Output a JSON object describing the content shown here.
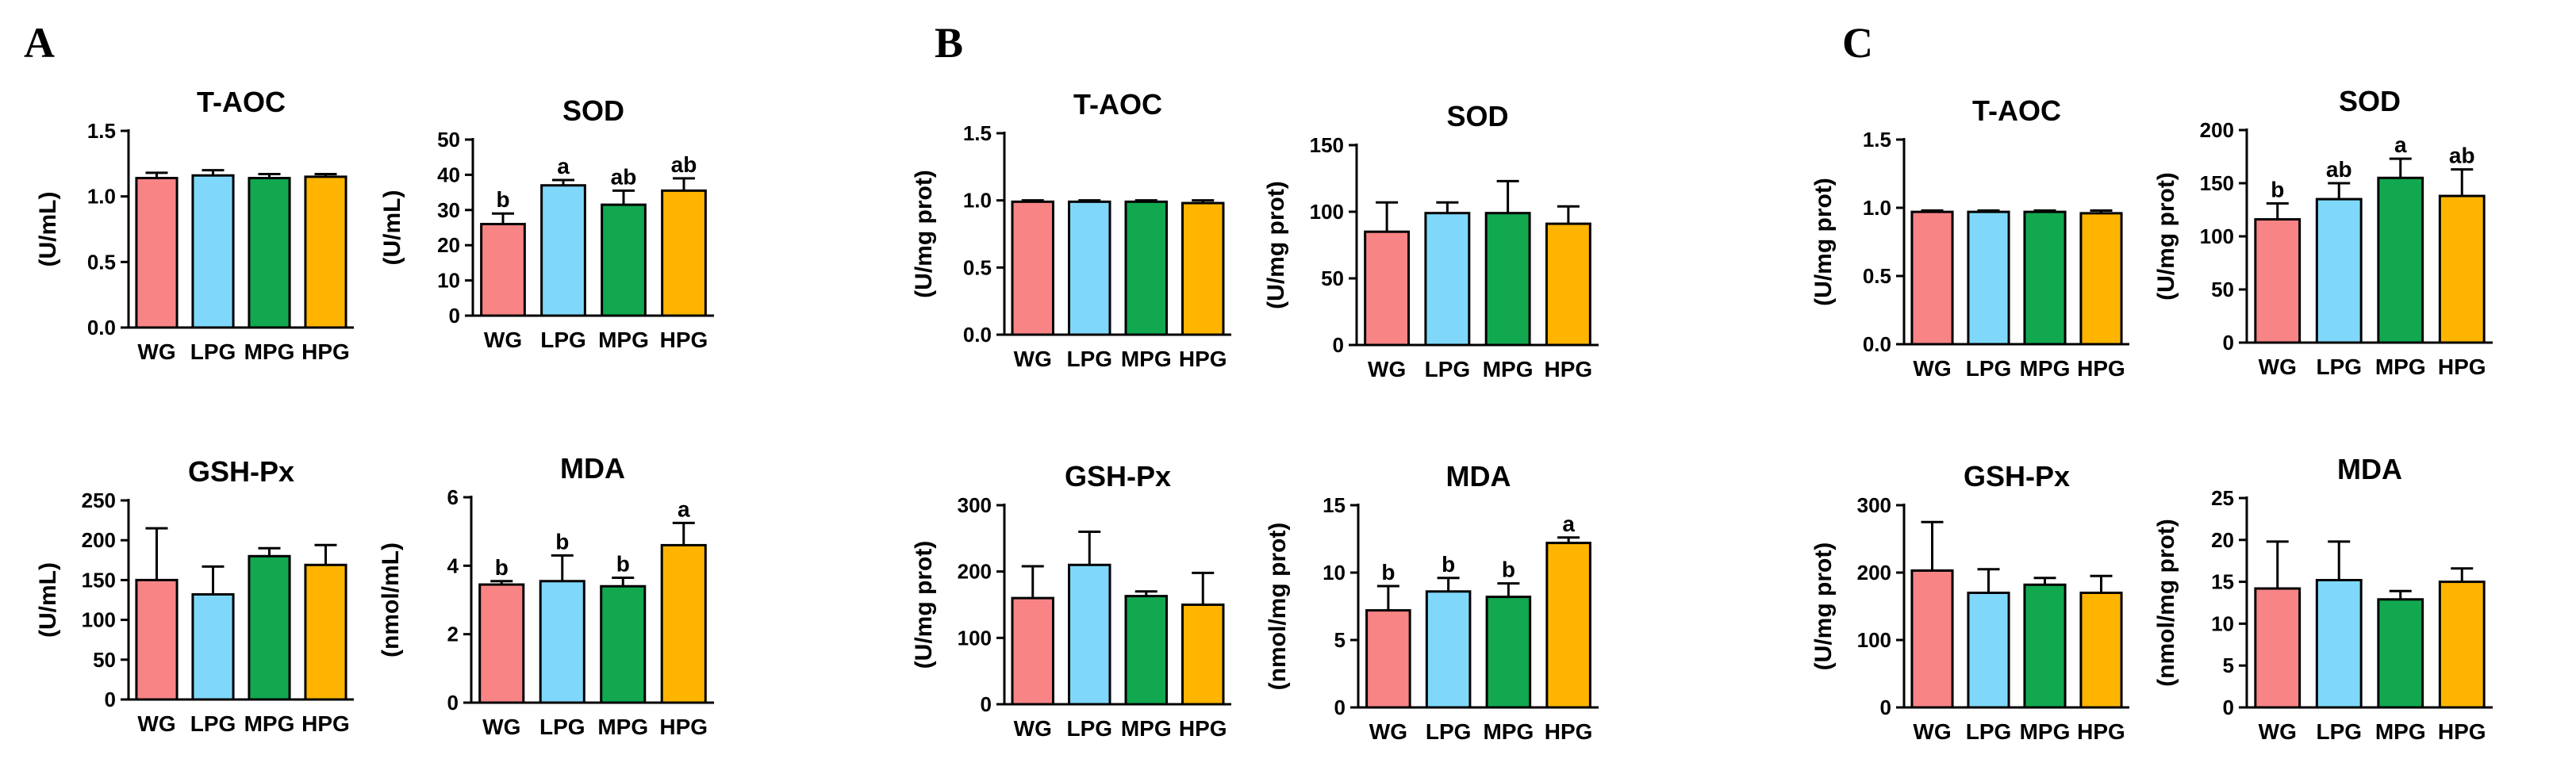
{
  "colors": {
    "WG": "#F88486",
    "LPG": "#7FD8FA",
    "MPG": "#11A84F",
    "HPG": "#FFB500",
    "stroke": "#000000"
  },
  "panels": [
    {
      "label": "A"
    },
    {
      "label": "B"
    },
    {
      "label": "C"
    }
  ],
  "chart_data": [
    {
      "type": "bar",
      "panel": "A",
      "title": "T-AOC",
      "ylabel": "(U/mL)",
      "categories": [
        "WG",
        "LPG",
        "MPG",
        "HPG"
      ],
      "values": [
        1.14,
        1.16,
        1.14,
        1.15
      ],
      "errors": [
        0.04,
        0.04,
        0.03,
        0.02
      ],
      "ylim": [
        0,
        1.5
      ],
      "yticks": [
        "0.0",
        "0.5",
        "1.0",
        "1.5"
      ],
      "tick_values": [
        0,
        0.5,
        1.0,
        1.5
      ],
      "letters": [
        "",
        "",
        "",
        ""
      ]
    },
    {
      "type": "bar",
      "panel": "A",
      "title": "SOD",
      "ylabel": "(U/mL)",
      "categories": [
        "WG",
        "LPG",
        "MPG",
        "HPG"
      ],
      "values": [
        26,
        37,
        31.5,
        35.5
      ],
      "errors": [
        3,
        1.5,
        4,
        3.5
      ],
      "ylim": [
        0,
        50
      ],
      "yticks": [
        "0",
        "10",
        "20",
        "30",
        "40",
        "50"
      ],
      "tick_values": [
        0,
        10,
        20,
        30,
        40,
        50
      ],
      "letters": [
        "b",
        "a",
        "ab",
        "ab"
      ]
    },
    {
      "type": "bar",
      "panel": "A",
      "title": "GSH-Px",
      "ylabel": "(U/mL)",
      "categories": [
        "WG",
        "LPG",
        "MPG",
        "HPG"
      ],
      "values": [
        150,
        132,
        180,
        169
      ],
      "errors": [
        65,
        35,
        10,
        25
      ],
      "ylim": [
        0,
        250
      ],
      "yticks": [
        "0",
        "50",
        "100",
        "150",
        "200",
        "250"
      ],
      "tick_values": [
        0,
        50,
        100,
        150,
        200,
        250
      ],
      "letters": [
        "",
        "",
        "",
        ""
      ]
    },
    {
      "type": "bar",
      "panel": "A",
      "title": "MDA",
      "ylabel": "(nmol/mL)",
      "categories": [
        "WG",
        "LPG",
        "MPG",
        "HPG"
      ],
      "values": [
        3.45,
        3.55,
        3.4,
        4.6
      ],
      "errors": [
        0.1,
        0.75,
        0.25,
        0.65
      ],
      "ylim": [
        0,
        6
      ],
      "yticks": [
        "0",
        "2",
        "4",
        "6"
      ],
      "tick_values": [
        0,
        2,
        4,
        6
      ],
      "letters": [
        "b",
        "b",
        "b",
        "a"
      ]
    },
    {
      "type": "bar",
      "panel": "B",
      "title": "T-AOC",
      "ylabel": "(U/mg prot)",
      "categories": [
        "WG",
        "LPG",
        "MPG",
        "HPG"
      ],
      "values": [
        0.99,
        0.99,
        0.99,
        0.98
      ],
      "errors": [
        0.01,
        0.01,
        0.01,
        0.02
      ],
      "ylim": [
        0,
        1.5
      ],
      "yticks": [
        "0.0",
        "0.5",
        "1.0",
        "1.5"
      ],
      "tick_values": [
        0,
        0.5,
        1.0,
        1.5
      ],
      "letters": [
        "",
        "",
        "",
        ""
      ]
    },
    {
      "type": "bar",
      "panel": "B",
      "title": "SOD",
      "ylabel": "(U/mg prot)",
      "categories": [
        "WG",
        "LPG",
        "MPG",
        "HPG"
      ],
      "values": [
        85,
        99,
        99,
        91
      ],
      "errors": [
        22,
        8,
        24,
        13
      ],
      "ylim": [
        0,
        150
      ],
      "yticks": [
        "0",
        "50",
        "100",
        "150"
      ],
      "tick_values": [
        0,
        50,
        100,
        150
      ],
      "letters": [
        "",
        "",
        "",
        ""
      ]
    },
    {
      "type": "bar",
      "panel": "B",
      "title": "GSH-Px",
      "ylabel": "(U/mg prot)",
      "categories": [
        "WG",
        "LPG",
        "MPG",
        "HPG"
      ],
      "values": [
        160,
        210,
        163,
        150
      ],
      "errors": [
        48,
        50,
        7,
        48
      ],
      "ylim": [
        0,
        300
      ],
      "yticks": [
        "0",
        "100",
        "200",
        "300"
      ],
      "tick_values": [
        0,
        100,
        200,
        300
      ],
      "letters": [
        "",
        "",
        "",
        ""
      ]
    },
    {
      "type": "bar",
      "panel": "B",
      "title": "MDA",
      "ylabel": "(nmol/mg prot)",
      "categories": [
        "WG",
        "LPG",
        "MPG",
        "HPG"
      ],
      "values": [
        7.2,
        8.6,
        8.2,
        12.2
      ],
      "errors": [
        1.8,
        1.0,
        1.0,
        0.4
      ],
      "ylim": [
        0,
        15
      ],
      "yticks": [
        "0",
        "5",
        "10",
        "15"
      ],
      "tick_values": [
        0,
        5,
        10,
        15
      ],
      "letters": [
        "b",
        "b",
        "b",
        "a"
      ]
    },
    {
      "type": "bar",
      "panel": "C",
      "title": "T-AOC",
      "ylabel": "(U/mg prot)",
      "categories": [
        "WG",
        "LPG",
        "MPG",
        "HPG"
      ],
      "values": [
        0.97,
        0.97,
        0.97,
        0.96
      ],
      "errors": [
        0.01,
        0.01,
        0.01,
        0.02
      ],
      "ylim": [
        0,
        1.5
      ],
      "yticks": [
        "0.0",
        "0.5",
        "1.0",
        "1.5"
      ],
      "tick_values": [
        0,
        0.5,
        1.0,
        1.5
      ],
      "letters": [
        "",
        "",
        "",
        ""
      ]
    },
    {
      "type": "bar",
      "panel": "C",
      "title": "SOD",
      "ylabel": "(U/mg prot)",
      "categories": [
        "WG",
        "LPG",
        "MPG",
        "HPG"
      ],
      "values": [
        116,
        135,
        155,
        138
      ],
      "errors": [
        15,
        15,
        18,
        25
      ],
      "ylim": [
        0,
        200
      ],
      "yticks": [
        "0",
        "50",
        "100",
        "150",
        "200"
      ],
      "tick_values": [
        0,
        50,
        100,
        150,
        200
      ],
      "letters": [
        "b",
        "ab",
        "a",
        "ab"
      ]
    },
    {
      "type": "bar",
      "panel": "C",
      "title": "GSH-Px",
      "ylabel": "(U/mg prot)",
      "categories": [
        "WG",
        "LPG",
        "MPG",
        "HPG"
      ],
      "values": [
        203,
        170,
        182,
        170
      ],
      "errors": [
        72,
        35,
        10,
        25
      ],
      "ylim": [
        0,
        300
      ],
      "yticks": [
        "0",
        "100",
        "200",
        "300"
      ],
      "tick_values": [
        0,
        100,
        200,
        300
      ],
      "letters": [
        "",
        "",
        "",
        ""
      ]
    },
    {
      "type": "bar",
      "panel": "C",
      "title": "MDA",
      "ylabel": "(nmol/mg prot)",
      "categories": [
        "WG",
        "LPG",
        "MPG",
        "HPG"
      ],
      "values": [
        14.2,
        15.2,
        12.9,
        15.0
      ],
      "errors": [
        5.6,
        4.6,
        1.0,
        1.6
      ],
      "ylim": [
        0,
        25
      ],
      "yticks": [
        "0",
        "5",
        "10",
        "15",
        "20",
        "25"
      ],
      "tick_values": [
        0,
        5,
        10,
        15,
        20,
        25
      ],
      "letters": [
        "",
        "",
        "",
        ""
      ]
    }
  ]
}
